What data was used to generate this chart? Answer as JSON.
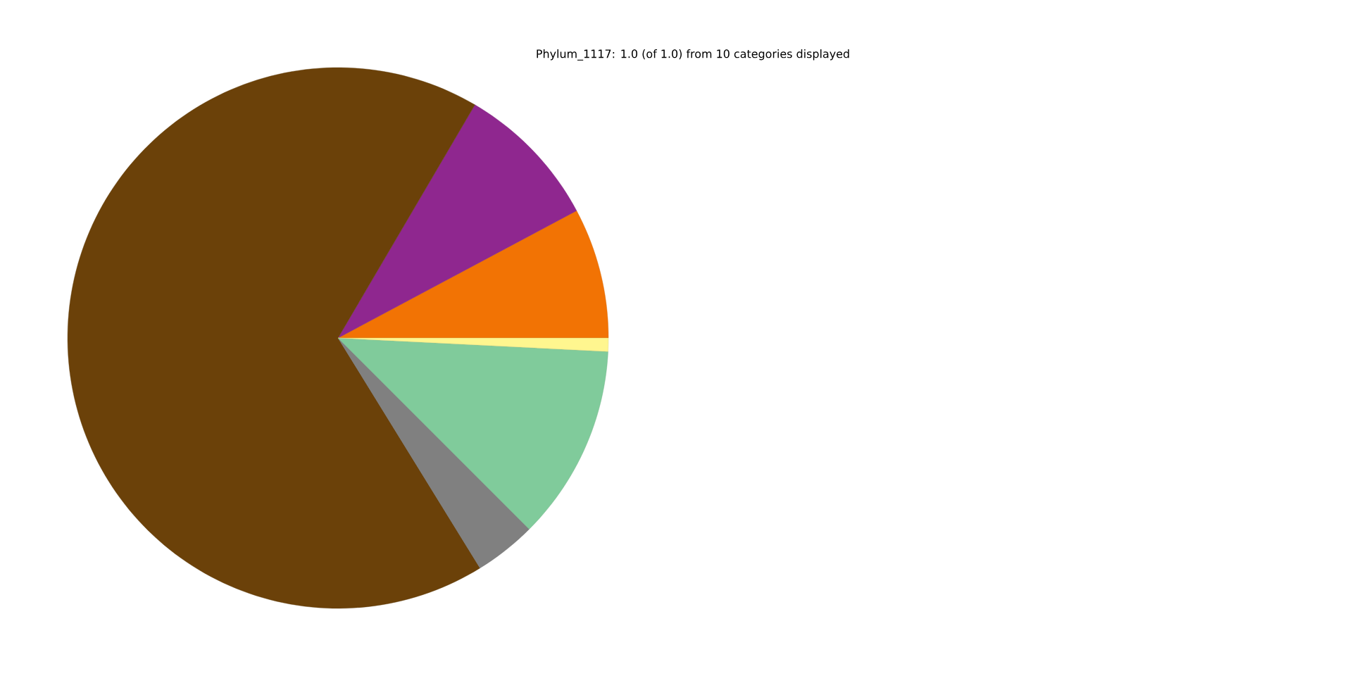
{
  "chart_data": {
    "type": "pie",
    "title": "Phylum_1117: 1.0 (of 1.0) from 10 categories displayed",
    "categories": [
      null,
      null,
      null,
      null,
      null,
      null
    ],
    "values": [
      7.8,
      8.75,
      67.25,
      3.7,
      11.7,
      0.8
    ],
    "colors": [
      "#f27304",
      "#8f278f",
      "#6b4109",
      "#808080",
      "#80cb9b",
      "#fff68f"
    ]
  }
}
